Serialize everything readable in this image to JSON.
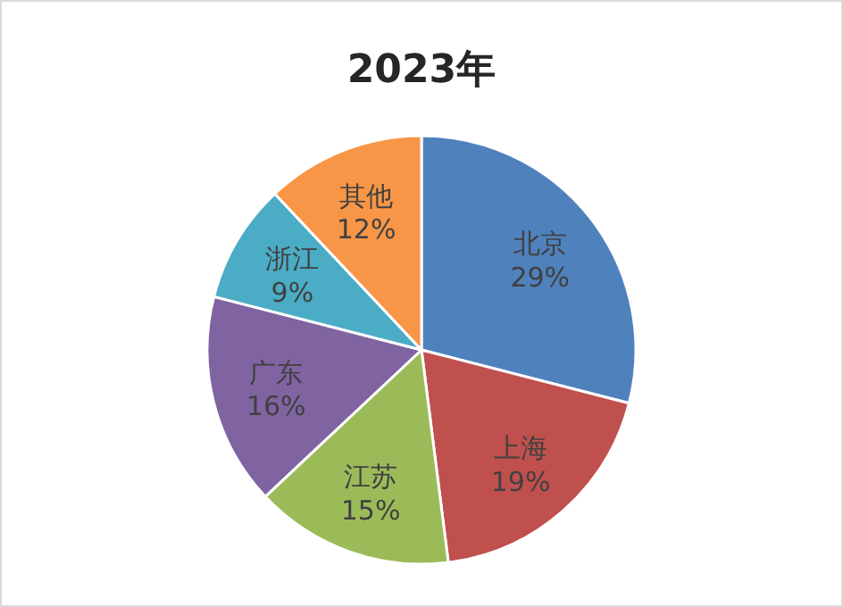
{
  "chart_data": {
    "type": "pie",
    "title": "2023年",
    "categories": [
      "北京",
      "上海",
      "江苏",
      "广东",
      "浙江",
      "其他"
    ],
    "values": [
      29,
      19,
      15,
      16,
      9,
      12
    ],
    "value_labels": [
      "29%",
      "19%",
      "15%",
      "16%",
      "9%",
      "12%"
    ],
    "colors": [
      "#4f81bd",
      "#c0504d",
      "#9bbb59",
      "#8064a2",
      "#4bacc6",
      "#f79646"
    ]
  }
}
